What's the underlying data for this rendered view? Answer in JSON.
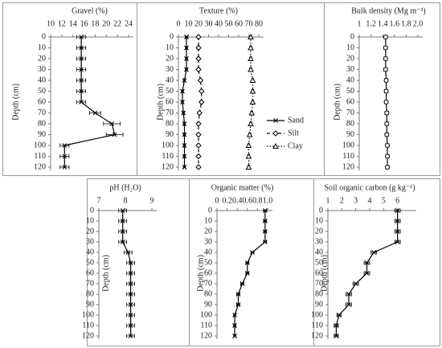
{
  "chart_data": [
    {
      "type": "line",
      "title": "Gravel (%)",
      "ylabel": "Depth (cm)",
      "y": [
        0,
        10,
        20,
        30,
        40,
        50,
        60,
        70,
        80,
        90,
        100,
        110,
        120
      ],
      "ylim": [
        0,
        120
      ],
      "yticks": [
        0,
        10,
        20,
        30,
        40,
        50,
        60,
        70,
        80,
        90,
        100,
        110,
        120
      ],
      "xlim": [
        10,
        24
      ],
      "xticks": [
        10,
        12,
        14,
        16,
        18,
        20,
        22,
        24
      ],
      "series": [
        {
          "color": "#000000",
          "marker": "x",
          "dash": "solid",
          "values": [
            15.5,
            15.5,
            15.5,
            15.5,
            15.5,
            15.5,
            15.5,
            18,
            21,
            21.5,
            12.5,
            12.5,
            12.5
          ],
          "errors": [
            0.8,
            0.8,
            0.8,
            0.8,
            0.8,
            0.8,
            0.8,
            1,
            1.5,
            1.5,
            0.8,
            0.8,
            0.8
          ]
        }
      ]
    },
    {
      "type": "line",
      "title": "Texture (%)",
      "ylabel": "Depth (cm)",
      "y": [
        0,
        10,
        20,
        30,
        40,
        50,
        60,
        70,
        80,
        90,
        100,
        110,
        120
      ],
      "ylim": [
        0,
        120
      ],
      "yticks": [
        0,
        10,
        20,
        30,
        40,
        50,
        60,
        70,
        80,
        90,
        100,
        110,
        120
      ],
      "xlim": [
        0,
        80
      ],
      "xticks": [
        0,
        10,
        20,
        30,
        40,
        50,
        60,
        70,
        80
      ],
      "legend": "right",
      "series": [
        {
          "name": "Sand",
          "color": "#000000",
          "marker": "x",
          "dash": "solid",
          "values": [
            8,
            8,
            8,
            8,
            6,
            4,
            4,
            5,
            6,
            6,
            6,
            6,
            6
          ],
          "errors": [
            1,
            1,
            1,
            1,
            1,
            1,
            1,
            1,
            1,
            1,
            1,
            1,
            1
          ]
        },
        {
          "name": "Silt",
          "color": "#000000",
          "marker": "diamond",
          "dash": "dashed",
          "values": [
            20,
            20,
            20,
            20,
            22,
            23,
            23,
            21,
            20,
            20,
            20,
            20,
            20
          ],
          "errors": [
            1,
            1,
            1,
            1,
            1,
            1,
            1,
            1,
            1,
            1,
            1,
            1,
            1
          ]
        },
        {
          "name": "Clay",
          "color": "#000000",
          "marker": "triangle",
          "dash": "dotted",
          "values": [
            72,
            72,
            72,
            72,
            74,
            74,
            74,
            73,
            72,
            71,
            70,
            70,
            70
          ],
          "errors": [
            1,
            1,
            1,
            1,
            1,
            1,
            1,
            1,
            1,
            1,
            1,
            1,
            1
          ]
        }
      ]
    },
    {
      "type": "line",
      "title": "Bulk density (Mg m⁻³)",
      "ylabel": "Depth (cm)",
      "y": [
        0,
        10,
        20,
        30,
        40,
        50,
        60,
        70,
        80,
        90,
        100,
        110,
        120
      ],
      "ylim": [
        0,
        120
      ],
      "yticks": [
        0,
        10,
        20,
        30,
        40,
        50,
        60,
        70,
        80,
        90,
        100,
        110,
        120
      ],
      "xlim": [
        1,
        2
      ],
      "xticks": [
        1,
        1.2,
        1.4,
        1.6,
        1.8,
        {
          "value": 2,
          "label": "2.0"
        }
      ],
      "series": [
        {
          "color": "#000000",
          "marker": "circle",
          "dash": "solid",
          "values": [
            1.45,
            1.45,
            1.45,
            1.45,
            1.46,
            1.46,
            1.46,
            1.47,
            1.47,
            1.47,
            1.48,
            1.48,
            1.48
          ],
          "errors": [
            0.03,
            0.03,
            0.03,
            0.03,
            0.03,
            0.03,
            0.03,
            0.03,
            0.03,
            0.03,
            0.03,
            0.03,
            0.03
          ]
        }
      ]
    },
    {
      "type": "line",
      "title": "pH (H₂O)",
      "ylabel": "Depth (cm)",
      "y": [
        0,
        10,
        20,
        30,
        40,
        50,
        60,
        70,
        80,
        90,
        100,
        110,
        120
      ],
      "ylim": [
        0,
        120
      ],
      "yticks": [
        0,
        10,
        20,
        30,
        40,
        50,
        60,
        70,
        80,
        90,
        100,
        110,
        120
      ],
      "xlim": [
        7,
        9
      ],
      "xticks": [
        7,
        8,
        9
      ],
      "series": [
        {
          "color": "#000000",
          "marker": "x",
          "dash": "solid",
          "values": [
            7.9,
            7.9,
            7.9,
            7.9,
            8.1,
            8.2,
            8.2,
            8.2,
            8.2,
            8.2,
            8.2,
            8.2,
            8.2
          ],
          "errors": [
            0.15,
            0.15,
            0.15,
            0.15,
            0.15,
            0.15,
            0.15,
            0.15,
            0.15,
            0.15,
            0.15,
            0.15,
            0.15
          ]
        }
      ]
    },
    {
      "type": "line",
      "title": "Organic matter (%)",
      "ylabel": "Depth (cm)",
      "y": [
        0,
        10,
        20,
        30,
        40,
        50,
        60,
        70,
        80,
        90,
        100,
        110,
        120
      ],
      "ylim": [
        0,
        120
      ],
      "yticks": [
        0,
        10,
        20,
        30,
        40,
        50,
        60,
        70,
        80,
        90,
        100,
        110,
        120
      ],
      "xlim": [
        0,
        1
      ],
      "xticks": [
        0,
        0.2,
        0.4,
        0.6,
        0.8,
        {
          "value": 1,
          "label": "1.0"
        }
      ],
      "series": [
        {
          "color": "#000000",
          "marker": "x",
          "dash": "solid",
          "values": [
            0.95,
            0.95,
            0.95,
            0.95,
            0.7,
            0.6,
            0.6,
            0.5,
            0.42,
            0.42,
            0.35,
            0.35,
            0.35
          ],
          "errors": [
            0.03,
            0.03,
            0.03,
            0.03,
            0.03,
            0.03,
            0.03,
            0.03,
            0.03,
            0.03,
            0.02,
            0.02,
            0.02
          ]
        }
      ]
    },
    {
      "type": "line",
      "title": "Soil organic carbon (g kg⁻¹)",
      "ylabel": "Depth (cm)",
      "y": [
        0,
        10,
        20,
        30,
        40,
        50,
        60,
        70,
        80,
        90,
        100,
        110,
        120
      ],
      "ylim": [
        0,
        120
      ],
      "yticks": [
        0,
        10,
        20,
        30,
        40,
        50,
        60,
        70,
        80,
        90,
        100,
        110,
        120
      ],
      "xlim": [
        1,
        7
      ],
      "xticks": [
        1,
        2,
        3,
        4,
        5,
        6
      ],
      "series": [
        {
          "color": "#000000",
          "marker": "x",
          "dash": "solid",
          "values": [
            6,
            6,
            6,
            6,
            4.3,
            3.8,
            3.8,
            3,
            2.5,
            2.5,
            1.8,
            1.6,
            1.6
          ],
          "errors": [
            0.2,
            0.2,
            0.2,
            0.2,
            0.2,
            0.2,
            0.2,
            0.2,
            0.2,
            0.2,
            0.15,
            0.15,
            0.15
          ]
        }
      ]
    }
  ]
}
